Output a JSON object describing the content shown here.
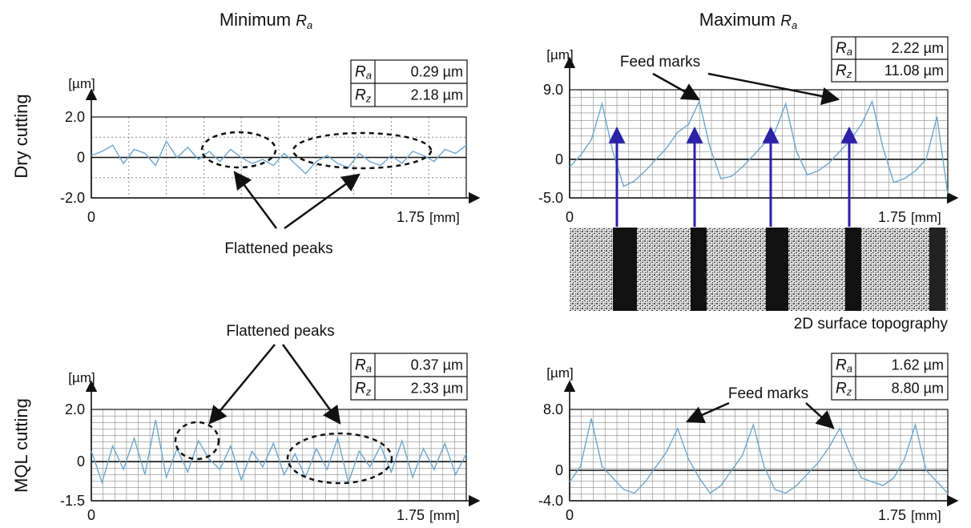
{
  "column_titles": {
    "min": {
      "main": "Minimum ",
      "sym": "R",
      "sub": "a"
    },
    "max": {
      "main": "Maximum ",
      "sym": "R",
      "sub": "a"
    }
  },
  "row_titles": {
    "dry": "Dry cutting",
    "mql": "MQL cutting"
  },
  "annotations": {
    "flattened_peaks": "Flattened peaks",
    "feed_marks": "Feed marks",
    "topography": "2D surface topography"
  },
  "colors": {
    "profile_line": "#6ea6cf",
    "arrow_blue": "#2b22a8",
    "grid": "#8a8a8a",
    "axis": "#111111"
  },
  "chart_data": [
    {
      "id": "dry-min",
      "type": "line",
      "ylabel": "[µm]",
      "xlabel": "[mm]",
      "y_ticks": [
        "2.0",
        "0",
        "-2.0"
      ],
      "x_ticks": [
        "0",
        "1.75"
      ],
      "xlim": [
        0,
        1.75
      ],
      "ylim": [
        -2.0,
        2.0
      ],
      "grid": "dotted",
      "roughness": {
        "Ra": "0.29 µm",
        "Rz": "2.18 µm"
      },
      "x": [
        0,
        0.05,
        0.1,
        0.15,
        0.2,
        0.25,
        0.3,
        0.35,
        0.4,
        0.45,
        0.5,
        0.55,
        0.6,
        0.65,
        0.7,
        0.75,
        0.8,
        0.85,
        0.9,
        0.95,
        1.0,
        1.05,
        1.1,
        1.15,
        1.2,
        1.25,
        1.3,
        1.35,
        1.4,
        1.45,
        1.5,
        1.55,
        1.6,
        1.65,
        1.7,
        1.75
      ],
      "y": [
        0.1,
        0.3,
        0.6,
        -0.3,
        0.4,
        0.2,
        -0.4,
        0.8,
        0.0,
        0.5,
        -0.1,
        0.3,
        -0.2,
        0.4,
        0.0,
        -0.3,
        -0.1,
        -0.4,
        0.2,
        -0.3,
        -0.8,
        -0.2,
        0.1,
        -0.3,
        -0.5,
        0.2,
        -0.2,
        -0.4,
        0.1,
        -0.3,
        0.3,
        0.1,
        -0.2,
        0.4,
        0.2,
        0.6
      ]
    },
    {
      "id": "dry-max",
      "type": "line",
      "ylabel": "[µm]",
      "xlabel": "[mm]",
      "y_ticks": [
        "9.0",
        "0",
        "-5.0"
      ],
      "x_ticks": [
        "0",
        "1.75"
      ],
      "xlim": [
        0,
        1.75
      ],
      "ylim": [
        -5.0,
        9.0
      ],
      "grid": "solid",
      "roughness": {
        "Ra": "2.22 µm",
        "Rz": "11.08 µm"
      },
      "x": [
        0,
        0.05,
        0.1,
        0.15,
        0.2,
        0.25,
        0.3,
        0.35,
        0.4,
        0.45,
        0.5,
        0.55,
        0.6,
        0.65,
        0.7,
        0.75,
        0.8,
        0.85,
        0.9,
        0.95,
        1.0,
        1.05,
        1.1,
        1.15,
        1.2,
        1.25,
        1.3,
        1.35,
        1.4,
        1.45,
        1.5,
        1.55,
        1.6,
        1.65,
        1.7,
        1.75
      ],
      "y": [
        -1.0,
        0.5,
        2.5,
        7.2,
        1.0,
        -3.5,
        -2.8,
        -1.5,
        0.0,
        1.5,
        3.5,
        4.5,
        7.5,
        1.5,
        -2.5,
        -2.2,
        -1.0,
        0.5,
        2.0,
        3.5,
        7.2,
        1.0,
        -2.0,
        -1.5,
        -0.5,
        1.0,
        2.5,
        4.5,
        7.5,
        1.5,
        -3.0,
        -2.5,
        -1.5,
        0.0,
        5.5,
        -4.5
      ]
    },
    {
      "id": "mql-min",
      "type": "line",
      "ylabel": "[µm]",
      "xlabel": "[mm]",
      "y_ticks": [
        "2.0",
        "0",
        "-1.5"
      ],
      "x_ticks": [
        "0",
        "1.75"
      ],
      "xlim": [
        0,
        1.75
      ],
      "ylim": [
        -1.5,
        2.0
      ],
      "grid": "solid",
      "roughness": {
        "Ra": "0.37 µm",
        "Rz": "2.33 µm"
      },
      "x": [
        0,
        0.05,
        0.1,
        0.15,
        0.2,
        0.25,
        0.3,
        0.35,
        0.4,
        0.45,
        0.5,
        0.55,
        0.6,
        0.65,
        0.7,
        0.75,
        0.8,
        0.85,
        0.9,
        0.95,
        1.0,
        1.05,
        1.1,
        1.15,
        1.2,
        1.25,
        1.3,
        1.35,
        1.4,
        1.45,
        1.5,
        1.55,
        1.6,
        1.65,
        1.7,
        1.75
      ],
      "y": [
        0.4,
        -0.8,
        0.6,
        -0.3,
        0.9,
        -0.5,
        1.6,
        -0.6,
        0.5,
        -0.4,
        0.8,
        0.1,
        -0.3,
        0.6,
        -0.7,
        0.4,
        -0.2,
        0.7,
        -0.5,
        0.3,
        -0.6,
        0.5,
        -0.3,
        0.9,
        -0.8,
        0.4,
        -0.2,
        0.6,
        -0.4,
        0.8,
        -0.6,
        0.5,
        -0.3,
        0.7,
        -0.5,
        0.3
      ]
    },
    {
      "id": "mql-max",
      "type": "line",
      "ylabel": "[µm]",
      "xlabel": "[mm]",
      "y_ticks": [
        "8.0",
        "0",
        "-4.0"
      ],
      "x_ticks": [
        "0",
        "1.75"
      ],
      "xlim": [
        0,
        1.75
      ],
      "ylim": [
        -4.0,
        8.0
      ],
      "grid": "solid",
      "roughness": {
        "Ra": "1.62 µm",
        "Rz": "8.80 µm"
      },
      "x": [
        0,
        0.05,
        0.1,
        0.15,
        0.2,
        0.25,
        0.3,
        0.35,
        0.4,
        0.45,
        0.5,
        0.55,
        0.6,
        0.65,
        0.7,
        0.75,
        0.8,
        0.85,
        0.9,
        0.95,
        1.0,
        1.05,
        1.1,
        1.15,
        1.2,
        1.25,
        1.3,
        1.35,
        1.4,
        1.45,
        1.5,
        1.55,
        1.6,
        1.65,
        1.7,
        1.75
      ],
      "y": [
        -1.5,
        0.5,
        6.8,
        0.5,
        -1.0,
        -2.5,
        -3.0,
        -1.5,
        0.5,
        2.5,
        5.5,
        1.5,
        -1.0,
        -3.0,
        -2.0,
        0.0,
        2.0,
        6.0,
        0.5,
        -2.5,
        -3.0,
        -2.0,
        -0.5,
        1.0,
        3.0,
        5.5,
        2.0,
        -1.0,
        -1.5,
        -2.0,
        -1.0,
        1.5,
        6.0,
        0.0,
        -1.5,
        -3.0
      ]
    }
  ]
}
